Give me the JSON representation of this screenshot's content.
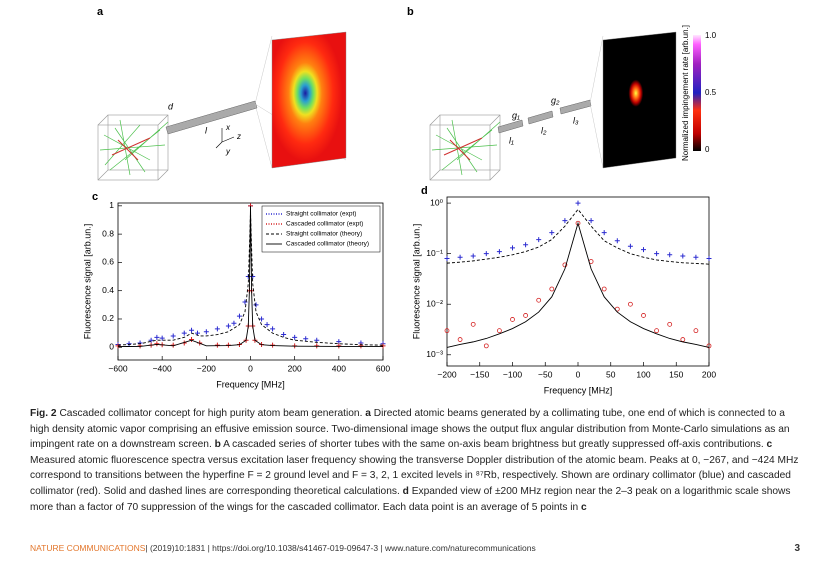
{
  "figure": {
    "panel_a": {
      "letter": "a",
      "d": "d",
      "l": "l",
      "x": "x",
      "y": "y",
      "z": "z"
    },
    "panel_b": {
      "letter": "b",
      "g1": "g₁",
      "g2": "g₂",
      "l1": "l₁",
      "l2": "l₂",
      "l3": "l₃",
      "colorbar_label": "Normalized impingement rate [arb.un.]",
      "colorbar_ticks": [
        "1.0",
        "0.5",
        "0"
      ]
    }
  },
  "chart_data": [
    {
      "type": "line",
      "panel": "c",
      "xlabel": "Frequency [MHz]",
      "ylabel": "Fluorescence signal [arb.un.]",
      "xlim": [
        -600,
        600
      ],
      "ylim": [
        -0.09,
        1.02
      ],
      "xticks": [
        {
          "value": -600,
          "label": "−600"
        },
        {
          "value": -400,
          "label": "−400"
        },
        {
          "value": -200,
          "label": "−200"
        },
        0,
        200,
        400,
        600
      ],
      "yticks": [
        0,
        0.2,
        0.4,
        0.6,
        0.8,
        1
      ],
      "legend": "upper right",
      "series": [
        {
          "name": "Straight collimator (expt)",
          "color": "#2b2bd0",
          "style": "points",
          "marker": "+",
          "x": [
            -600,
            -550,
            -500,
            -450,
            -424,
            -400,
            -350,
            -300,
            -267,
            -240,
            -200,
            -150,
            -100,
            -75,
            -50,
            -25,
            -10,
            0,
            10,
            25,
            50,
            75,
            100,
            150,
            200,
            250,
            300,
            400,
            500,
            600
          ],
          "values": [
            0.02,
            0.025,
            0.03,
            0.05,
            0.07,
            0.065,
            0.08,
            0.1,
            0.12,
            0.1,
            0.11,
            0.13,
            0.15,
            0.17,
            0.22,
            0.32,
            0.5,
            1.0,
            0.5,
            0.3,
            0.2,
            0.16,
            0.13,
            0.09,
            0.07,
            0.06,
            0.05,
            0.04,
            0.03,
            0.025
          ]
        },
        {
          "name": "Cascaded collimator (expt)",
          "color": "#d42020",
          "style": "points",
          "marker": "+",
          "x": [
            -600,
            -500,
            -450,
            -424,
            -400,
            -350,
            -300,
            -267,
            -230,
            -150,
            -100,
            -50,
            -20,
            -10,
            -5,
            0,
            5,
            10,
            20,
            50,
            100,
            200,
            300,
            400,
            500,
            600
          ],
          "values": [
            0.01,
            0.01,
            0.015,
            0.025,
            0.018,
            0.015,
            0.03,
            0.055,
            0.03,
            0.015,
            0.015,
            0.02,
            0.05,
            0.15,
            0.4,
            1.0,
            0.4,
            0.15,
            0.05,
            0.02,
            0.015,
            0.01,
            0.01,
            0.01,
            0.01,
            0.01
          ]
        },
        {
          "name": "Straight collimator (theory)",
          "color": "#000000",
          "style": "dashed",
          "x": [
            -600,
            -500,
            -424,
            -350,
            -300,
            -267,
            -230,
            -200,
            -150,
            -100,
            -50,
            -25,
            -10,
            0,
            10,
            25,
            50,
            100,
            150,
            200,
            300,
            400,
            500,
            600
          ],
          "values": [
            0.015,
            0.025,
            0.05,
            0.05,
            0.07,
            0.1,
            0.08,
            0.08,
            0.09,
            0.11,
            0.16,
            0.25,
            0.45,
            0.95,
            0.45,
            0.25,
            0.16,
            0.1,
            0.07,
            0.05,
            0.035,
            0.025,
            0.018,
            0.015
          ]
        },
        {
          "name": "Cascaded collimator (theory)",
          "color": "#000000",
          "style": "solid",
          "x": [
            -600,
            -500,
            -424,
            -350,
            -267,
            -200,
            -100,
            -50,
            -20,
            -10,
            -5,
            0,
            5,
            10,
            20,
            50,
            100,
            200,
            400,
            600
          ],
          "values": [
            0.005,
            0.006,
            0.02,
            0.01,
            0.05,
            0.01,
            0.012,
            0.018,
            0.05,
            0.15,
            0.4,
            1.0,
            0.4,
            0.15,
            0.05,
            0.018,
            0.012,
            0.008,
            0.006,
            0.005
          ]
        }
      ]
    },
    {
      "type": "line",
      "panel": "d",
      "xlabel": "Frequency [MHz]",
      "ylabel": "Fluorescence signal [arb.un.]",
      "log_y": true,
      "xlim": [
        -200,
        200
      ],
      "ylim": [
        0.0006,
        1.32
      ],
      "xticks": [
        {
          "value": -200,
          "label": "−200"
        },
        {
          "value": -150,
          "label": "−150"
        },
        {
          "value": -100,
          "label": "−100"
        },
        {
          "value": -50,
          "label": "−50"
        },
        0,
        50,
        100,
        150,
        200
      ],
      "yticks": [
        {
          "value": 1,
          "label": "10⁰"
        },
        {
          "value": 0.1,
          "label": "10⁻¹"
        },
        {
          "value": 0.01,
          "label": "10⁻²"
        },
        {
          "value": 0.001,
          "label": "10⁻³"
        }
      ],
      "series": [
        {
          "color": "#2b2bd0",
          "style": "points",
          "marker": "+",
          "x": [
            -200,
            -180,
            -160,
            -140,
            -120,
            -100,
            -80,
            -60,
            -40,
            -20,
            0,
            20,
            40,
            60,
            80,
            100,
            120,
            140,
            160,
            180,
            200
          ],
          "values": [
            0.08,
            0.085,
            0.09,
            0.1,
            0.11,
            0.13,
            0.15,
            0.19,
            0.26,
            0.45,
            1.0,
            0.45,
            0.26,
            0.18,
            0.14,
            0.12,
            0.1,
            0.095,
            0.09,
            0.085,
            0.08
          ]
        },
        {
          "color": "#000000",
          "style": "dashed",
          "x": [
            -200,
            -180,
            -160,
            -140,
            -120,
            -100,
            -80,
            -60,
            -40,
            -20,
            0,
            20,
            40,
            60,
            80,
            100,
            120,
            140,
            160,
            180,
            200
          ],
          "values": [
            0.065,
            0.068,
            0.072,
            0.078,
            0.085,
            0.095,
            0.11,
            0.135,
            0.19,
            0.35,
            0.75,
            0.35,
            0.18,
            0.13,
            0.1,
            0.085,
            0.075,
            0.07,
            0.066,
            0.064,
            0.062
          ]
        },
        {
          "color": "#d42020",
          "style": "points",
          "marker": "o",
          "x": [
            -200,
            -180,
            -160,
            -140,
            -120,
            -100,
            -80,
            -60,
            -40,
            -20,
            0,
            20,
            40,
            60,
            80,
            100,
            120,
            140,
            160,
            180,
            200
          ],
          "values": [
            0.003,
            0.002,
            0.004,
            0.0015,
            0.003,
            0.005,
            0.006,
            0.012,
            0.02,
            0.06,
            0.4,
            0.07,
            0.02,
            0.008,
            0.01,
            0.006,
            0.003,
            0.004,
            0.002,
            0.003,
            0.0015
          ]
        },
        {
          "color": "#000000",
          "style": "solid",
          "x": [
            -200,
            -180,
            -160,
            -140,
            -120,
            -100,
            -80,
            -60,
            -40,
            -20,
            0,
            20,
            40,
            60,
            80,
            100,
            120,
            140,
            160,
            180,
            200
          ],
          "values": [
            0.0014,
            0.0016,
            0.0018,
            0.0021,
            0.0026,
            0.0033,
            0.0045,
            0.007,
            0.014,
            0.05,
            0.4,
            0.05,
            0.014,
            0.007,
            0.0045,
            0.0033,
            0.0026,
            0.0021,
            0.0018,
            0.0016,
            0.0014
          ]
        }
      ]
    }
  ],
  "caption": [
    "Fig. 2",
    " Cascaded collimator concept for high purity atom beam generation. ",
    "a",
    " Directed atomic beams generated by a collimating tube, one end of which is connected to a high density atomic vapor comprising an effusive emission source. Two-dimensional image shows the output flux angular distribution from Monte-Carlo simulations as an impingent rate on a downstream screen. ",
    "b",
    " A cascaded series of shorter tubes with the same on-axis beam brightness but greatly suppressed off-axis contributions. ",
    "c",
    " Measured atomic fluorescence spectra versus excitation laser frequency showing the transverse Doppler distribution of the atomic beam. Peaks at 0, −267, and −424 MHz correspond to transitions between the hyperfine F = 2 ground level and F = 3, 2, 1 excited levels in ⁸⁷Rb, respectively. Shown are ordinary collimator (blue) and cascaded collimator (red). Solid and dashed lines are corresponding theoretical calculations. ",
    "d",
    " Expanded view of ±200 MHz region near the 2–3 peak on a logarithmic scale shows more than a factor of 70 suppression of the wings for the cascaded collimator. Each data point is an average of 5 points in ",
    "c"
  ],
  "footer": {
    "journal": "NATURE COMMUNICATIONS",
    "citation": "| (2019)10:1831 | https://doi.org/10.1038/s41467-019-09647-3 | www.nature.com/naturecommunications",
    "page": "3"
  }
}
